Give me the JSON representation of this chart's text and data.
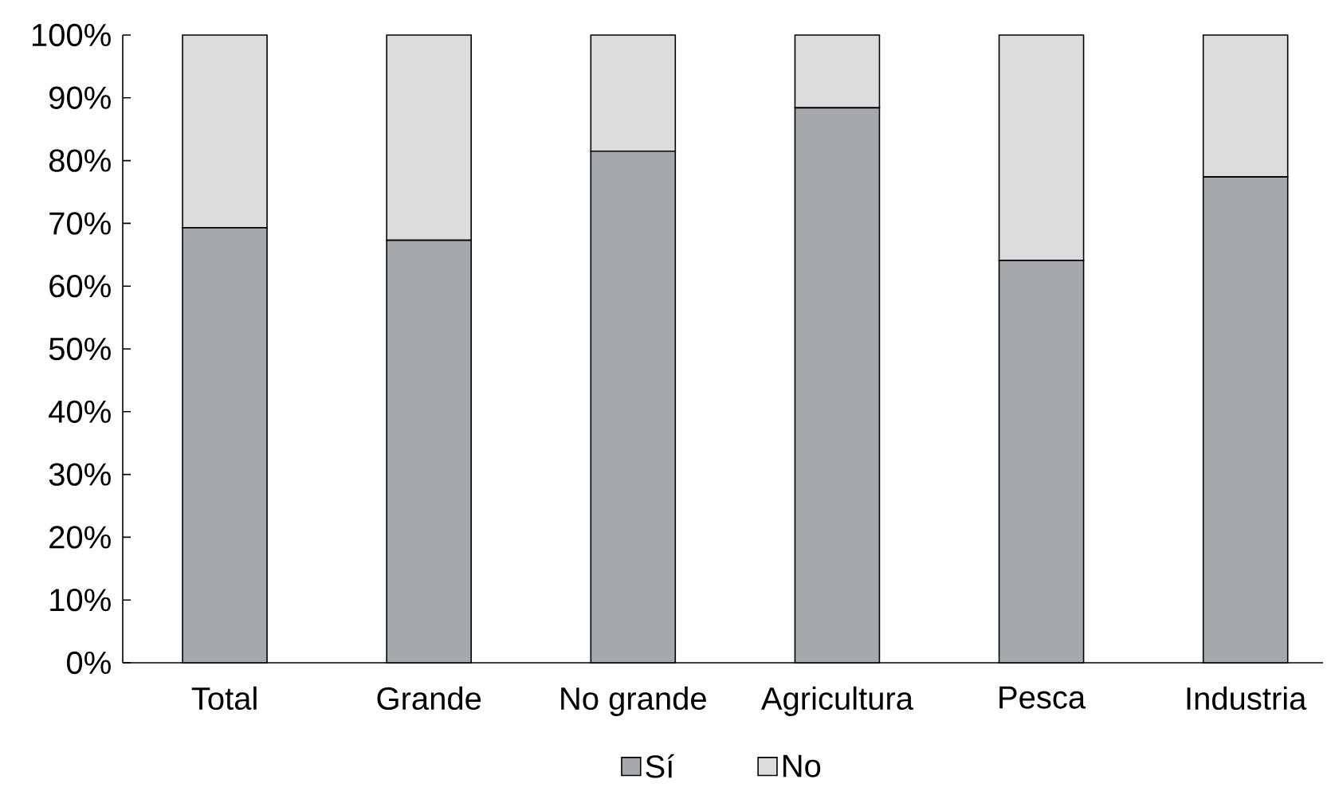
{
  "chart_data": {
    "type": "bar",
    "stacked": true,
    "categories": [
      "Total",
      "Grande",
      "No grande",
      "Agricultura",
      "Pesca",
      "Industria"
    ],
    "series": [
      {
        "name": "Sí",
        "color": "#a7a8ab",
        "values": [
          69.3,
          67.3,
          81.5,
          88.4,
          64.1,
          77.4
        ]
      },
      {
        "name": "No",
        "color": "#dcdcdc",
        "values": [
          30.7,
          32.7,
          18.5,
          11.6,
          35.9,
          22.6
        ]
      }
    ],
    "ylim": [
      0,
      100
    ],
    "yticks": [
      {
        "value": 0,
        "label": "0%"
      },
      {
        "value": 10,
        "label": "10%"
      },
      {
        "value": 20,
        "label": "20%"
      },
      {
        "value": 30,
        "label": "30%"
      },
      {
        "value": 40,
        "label": "40%"
      },
      {
        "value": 50,
        "label": "50%"
      },
      {
        "value": 60,
        "label": "60%"
      },
      {
        "value": 70,
        "label": "70%"
      },
      {
        "value": 80,
        "label": "80%"
      },
      {
        "value": 90,
        "label": "90%"
      },
      {
        "value": 100,
        "label": "100%"
      }
    ],
    "legend": "bottom"
  }
}
